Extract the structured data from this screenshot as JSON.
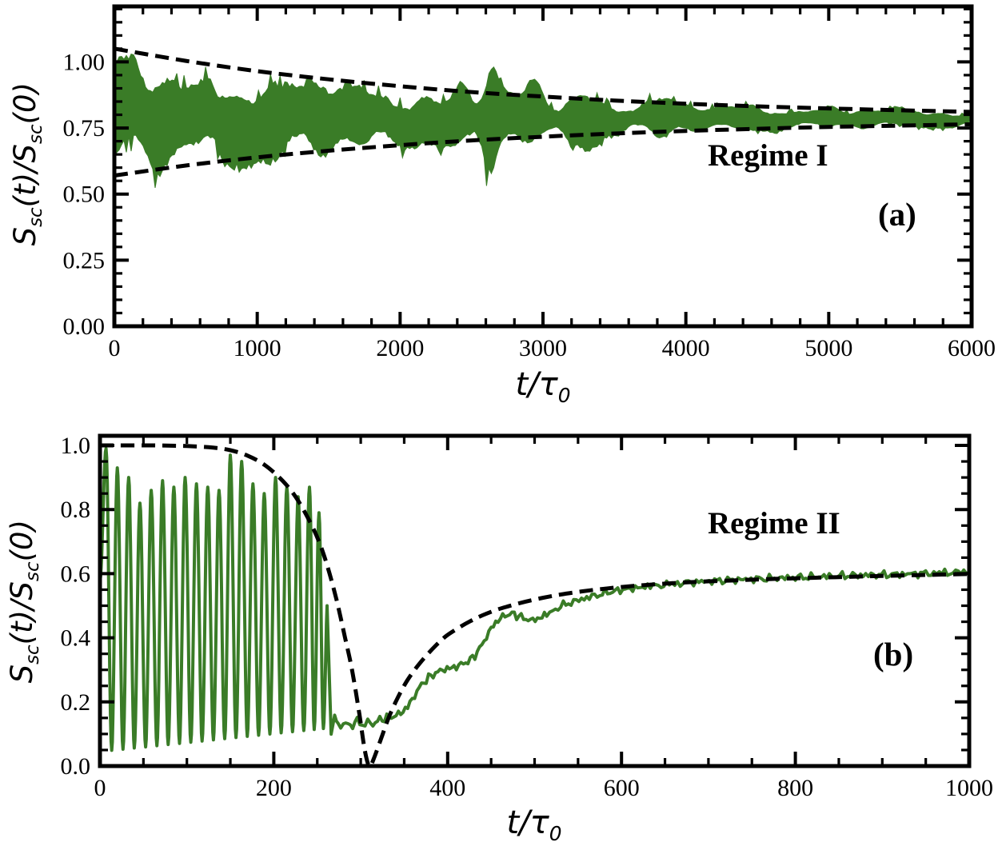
{
  "figure": {
    "background": "#ffffff",
    "curve_color": "#3a7c27",
    "dash_color": "#000000",
    "frame_color": "#000000"
  },
  "chart_data": [
    {
      "panel": "a",
      "type": "line",
      "title": "",
      "xlabel": "t/τ_{0}",
      "ylabel": "S_{sc}(t)/S_{sc}(0)",
      "xlim": [
        0,
        6000
      ],
      "ylim": [
        0,
        1.21
      ],
      "xticks": [
        0,
        1000,
        2000,
        3000,
        4000,
        5000,
        6000
      ],
      "xtick_labels": [
        "0",
        "1000",
        "2000",
        "3000",
        "4000",
        "5000",
        "6000"
      ],
      "x_minor_step": 200,
      "yticks": [
        0,
        0.25,
        0.5,
        0.75,
        1.0
      ],
      "ytick_labels": [
        "0.00",
        "0.25",
        "0.50",
        "0.75",
        "1.00"
      ],
      "y_minor_step": 0.05,
      "grid": false,
      "legend": "none",
      "annotations": [
        {
          "id": "regime-label",
          "text": "Regime I"
        },
        {
          "id": "panel-letter",
          "text": "(a)"
        }
      ],
      "series": [
        {
          "name": "noisy-signal-band",
          "style": "noisy-band",
          "color": "#3a7c27",
          "mean": 0.785,
          "band_upper_samples": [
            [
              0,
              1.02
            ],
            [
              500,
              0.99
            ],
            [
              1000,
              1.0
            ],
            [
              1500,
              1.01
            ],
            [
              2000,
              0.97
            ],
            [
              2500,
              1.05
            ],
            [
              2700,
              1.1
            ],
            [
              3000,
              0.98
            ],
            [
              3500,
              0.93
            ],
            [
              4000,
              0.89
            ],
            [
              4500,
              0.86
            ],
            [
              5000,
              0.84
            ],
            [
              5500,
              0.82
            ],
            [
              6000,
              0.81
            ]
          ],
          "band_lower_samples": [
            [
              0,
              0.53
            ],
            [
              500,
              0.6
            ],
            [
              1000,
              0.58
            ],
            [
              1500,
              0.56
            ],
            [
              2000,
              0.62
            ],
            [
              2500,
              0.57
            ],
            [
              2700,
              0.53
            ],
            [
              3000,
              0.6
            ],
            [
              3500,
              0.64
            ],
            [
              4000,
              0.68
            ],
            [
              4500,
              0.71
            ],
            [
              5000,
              0.73
            ],
            [
              5500,
              0.745
            ],
            [
              6000,
              0.755
            ]
          ],
          "generator": {
            "seed": 1337,
            "amp0": 0.26,
            "tau": 3200,
            "boosts": [
              {
                "t": 330,
                "w": 80,
                "g": 0.3
              },
              {
                "t": 760,
                "w": 120,
                "g": 0.4
              },
              {
                "t": 1380,
                "w": 140,
                "g": 0.6
              },
              {
                "t": 1900,
                "w": 120,
                "g": 0.45
              },
              {
                "t": 2450,
                "w": 90,
                "g": 0.9
              },
              {
                "t": 2640,
                "w": 70,
                "g": 1.6
              },
              {
                "t": 2950,
                "w": 90,
                "g": 0.8
              },
              {
                "t": 3350,
                "w": 90,
                "g": 0.6
              },
              {
                "t": 3800,
                "w": 100,
                "g": 0.35
              }
            ]
          }
        },
        {
          "name": "upper-envelope-dashed",
          "style": "dashed",
          "color": "#000000",
          "points": [
            [
              0,
              1.05
            ],
            [
              500,
              1.004
            ],
            [
              1000,
              0.965
            ],
            [
              1500,
              0.934
            ],
            [
              2000,
              0.908
            ],
            [
              2500,
              0.886
            ],
            [
              3000,
              0.869
            ],
            [
              3500,
              0.854
            ],
            [
              4000,
              0.842
            ],
            [
              4500,
              0.832
            ],
            [
              5000,
              0.824
            ],
            [
              5500,
              0.817
            ],
            [
              6000,
              0.811
            ]
          ]
        },
        {
          "name": "lower-envelope-dashed",
          "style": "dashed",
          "color": "#000000",
          "points": [
            [
              0,
              0.57
            ],
            [
              500,
              0.608
            ],
            [
              1000,
              0.639
            ],
            [
              1500,
              0.664
            ],
            [
              2000,
              0.685
            ],
            [
              2500,
              0.703
            ],
            [
              3000,
              0.717
            ],
            [
              3500,
              0.729
            ],
            [
              4000,
              0.739
            ],
            [
              4500,
              0.747
            ],
            [
              5000,
              0.754
            ],
            [
              5500,
              0.759
            ],
            [
              6000,
              0.764
            ]
          ]
        }
      ]
    },
    {
      "panel": "b",
      "type": "line",
      "title": "",
      "xlabel": "t/τ_{0}",
      "ylabel": "S_{sc}(t)/S_{sc}(0)",
      "xlim": [
        0,
        1000
      ],
      "ylim": [
        0,
        1.03
      ],
      "xticks": [
        0,
        200,
        400,
        600,
        800,
        1000
      ],
      "xtick_labels": [
        "0",
        "200",
        "400",
        "600",
        "800",
        "1000"
      ],
      "x_minor_step": 50,
      "yticks": [
        0,
        0.2,
        0.4,
        0.6,
        0.8,
        1.0
      ],
      "ytick_labels": [
        "0.0",
        "0.2",
        "0.4",
        "0.6",
        "0.8",
        "1.0"
      ],
      "y_minor_step": 0.05,
      "grid": false,
      "legend": "none",
      "annotations": [
        {
          "id": "regime-label",
          "text": "Regime II"
        },
        {
          "id": "panel-letter",
          "text": "(b)"
        }
      ],
      "series": [
        {
          "name": "oscillating-signal",
          "style": "line",
          "color": "#3a7c27",
          "oscillation": {
            "start": [
              0,
              0.58
            ],
            "valley_base": 0.045,
            "valley_slope": 0.00028,
            "peaks": [
              [
                7,
                0.99
              ],
              [
                20,
                0.93
              ],
              [
                33,
                0.9
              ],
              [
                46,
                0.82
              ],
              [
                59,
                0.86
              ],
              [
                72,
                0.89
              ],
              [
                85,
                0.87
              ],
              [
                98,
                0.9
              ],
              [
                111,
                0.88
              ],
              [
                124,
                0.87
              ],
              [
                137,
                0.86
              ],
              [
                150,
                0.97
              ],
              [
                163,
                0.95
              ],
              [
                176,
                0.88
              ],
              [
                189,
                0.85
              ],
              [
                202,
                0.9
              ],
              [
                215,
                0.87
              ],
              [
                228,
                0.84
              ],
              [
                241,
                0.87
              ],
              [
                252,
                0.79
              ],
              [
                262,
                0.52
              ]
            ]
          },
          "recovery_points": [
            [
              266,
              0.1
            ],
            [
              270,
              0.16
            ],
            [
              274,
              0.12
            ],
            [
              280,
              0.135
            ],
            [
              288,
              0.125
            ],
            [
              296,
              0.14
            ],
            [
              302,
              0.13
            ],
            [
              308,
              0.135
            ],
            [
              314,
              0.13
            ],
            [
              322,
              0.145
            ],
            [
              330,
              0.15
            ],
            [
              338,
              0.155
            ],
            [
              346,
              0.165
            ],
            [
              354,
              0.185
            ],
            [
              362,
              0.22
            ],
            [
              370,
              0.255
            ],
            [
              378,
              0.275
            ],
            [
              386,
              0.29
            ],
            [
              394,
              0.3
            ],
            [
              402,
              0.305
            ],
            [
              410,
              0.31
            ],
            [
              418,
              0.32
            ],
            [
              426,
              0.33
            ],
            [
              434,
              0.355
            ],
            [
              442,
              0.39
            ],
            [
              450,
              0.43
            ],
            [
              458,
              0.455
            ],
            [
              466,
              0.47
            ],
            [
              474,
              0.475
            ],
            [
              482,
              0.468
            ],
            [
              490,
              0.458
            ],
            [
              498,
              0.455
            ],
            [
              506,
              0.462
            ],
            [
              514,
              0.472
            ],
            [
              524,
              0.49
            ],
            [
              536,
              0.505
            ],
            [
              548,
              0.515
            ],
            [
              560,
              0.525
            ],
            [
              575,
              0.535
            ],
            [
              590,
              0.545
            ],
            [
              610,
              0.553
            ],
            [
              630,
              0.56
            ],
            [
              655,
              0.567
            ],
            [
              680,
              0.573
            ],
            [
              710,
              0.578
            ],
            [
              740,
              0.582
            ],
            [
              770,
              0.585
            ],
            [
              800,
              0.588
            ],
            [
              830,
              0.591
            ],
            [
              860,
              0.594
            ],
            [
              890,
              0.596
            ],
            [
              920,
              0.598
            ],
            [
              950,
              0.601
            ],
            [
              975,
              0.603
            ],
            [
              1000,
              0.606
            ]
          ]
        },
        {
          "name": "theory-dashed",
          "style": "dashed",
          "color": "#000000",
          "points": [
            [
              0,
              1.0
            ],
            [
              60,
              1.0
            ],
            [
              100,
              0.998
            ],
            [
              130,
              0.993
            ],
            [
              150,
              0.985
            ],
            [
              170,
              0.968
            ],
            [
              190,
              0.938
            ],
            [
              210,
              0.89
            ],
            [
              225,
              0.84
            ],
            [
              240,
              0.77
            ],
            [
              252,
              0.7
            ],
            [
              262,
              0.62
            ],
            [
              272,
              0.52
            ],
            [
              282,
              0.4
            ],
            [
              290,
              0.3
            ],
            [
              298,
              0.17
            ],
            [
              304,
              0.06
            ],
            [
              308,
              0.01
            ],
            [
              311,
              0.0
            ],
            [
              316,
              0.03
            ],
            [
              324,
              0.09
            ],
            [
              332,
              0.15
            ],
            [
              342,
              0.21
            ],
            [
              352,
              0.26
            ],
            [
              362,
              0.3
            ],
            [
              374,
              0.34
            ],
            [
              386,
              0.375
            ],
            [
              398,
              0.405
            ],
            [
              412,
              0.43
            ],
            [
              426,
              0.452
            ],
            [
              440,
              0.47
            ],
            [
              456,
              0.487
            ],
            [
              472,
              0.5
            ],
            [
              490,
              0.513
            ],
            [
              510,
              0.525
            ],
            [
              530,
              0.535
            ],
            [
              555,
              0.545
            ],
            [
              580,
              0.553
            ],
            [
              610,
              0.561
            ],
            [
              640,
              0.567
            ],
            [
              670,
              0.572
            ],
            [
              700,
              0.576
            ],
            [
              740,
              0.58
            ],
            [
              780,
              0.584
            ],
            [
              820,
              0.587
            ],
            [
              860,
              0.59
            ],
            [
              900,
              0.593
            ],
            [
              950,
              0.596
            ],
            [
              1000,
              0.599
            ]
          ]
        }
      ]
    }
  ]
}
